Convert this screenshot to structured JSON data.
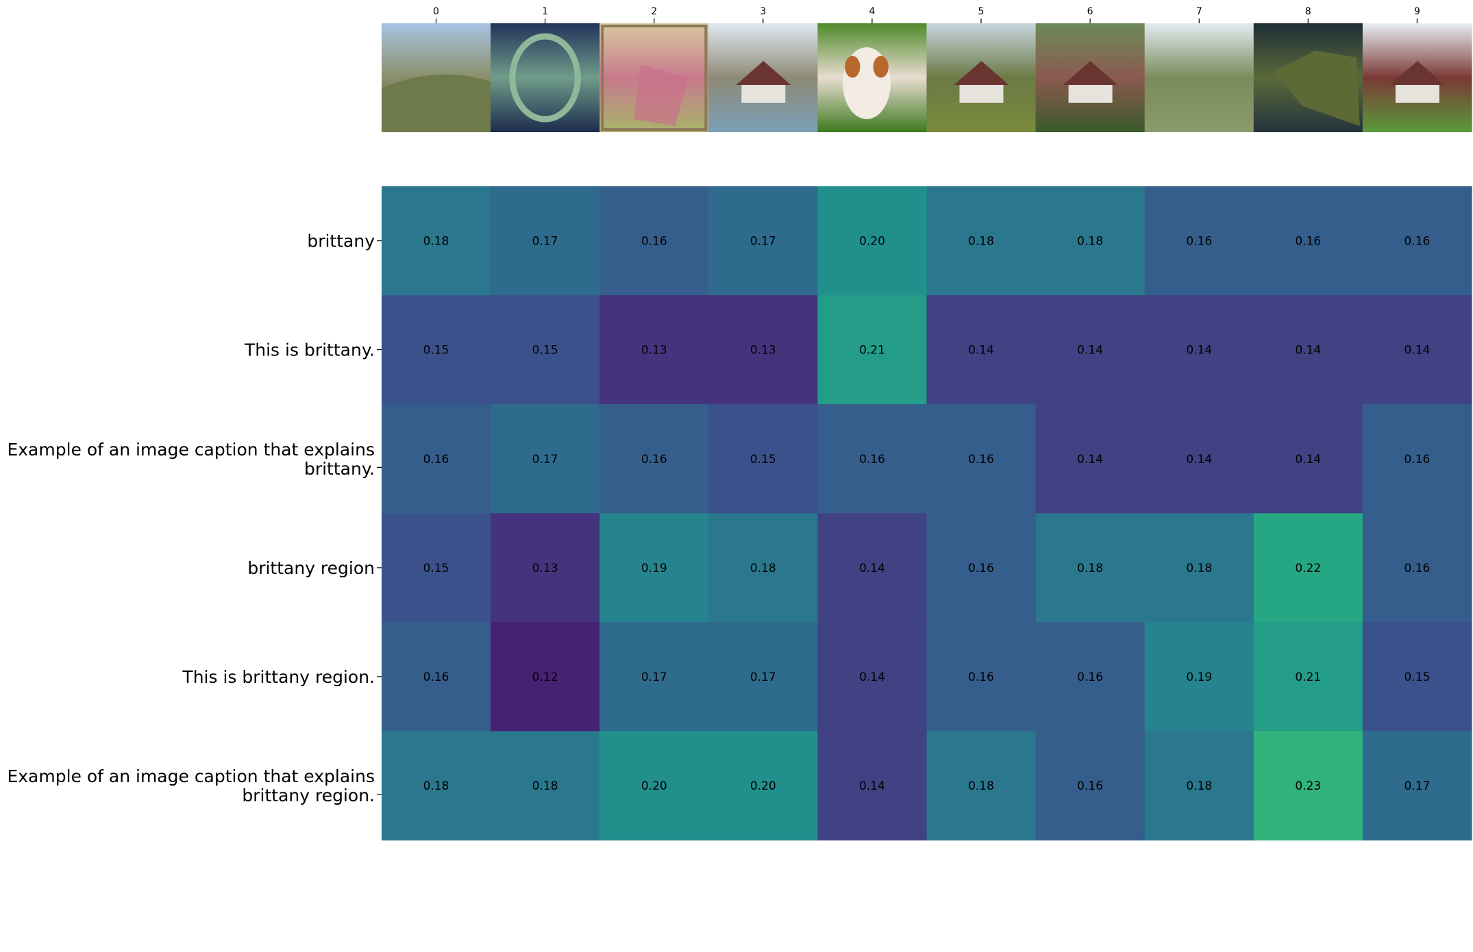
{
  "chart_data": {
    "type": "heatmap",
    "title": "",
    "xlabel": "",
    "ylabel": "",
    "columns": [
      "0",
      "1",
      "2",
      "3",
      "4",
      "5",
      "6",
      "7",
      "8",
      "9"
    ],
    "column_thumbnails": [
      {
        "index": 0,
        "scene": "hill-landscape",
        "sky": "#a9c4e4",
        "mid": "#8a8f6a",
        "ground": "#3f5a2a"
      },
      {
        "index": 1,
        "scene": "atoll-satellite",
        "sky": "#22345a",
        "mid": "#6f9c8a",
        "ground": "#1d2c4e"
      },
      {
        "index": 2,
        "scene": "old-map",
        "sky": "#d8c8a0",
        "mid": "#c87a8e",
        "ground": "#a9b36a"
      },
      {
        "index": 3,
        "scene": "river-village",
        "sky": "#dfe9f2",
        "mid": "#8e8a76",
        "ground": "#7aa0b8"
      },
      {
        "index": 4,
        "scene": "puppy-on-grass",
        "sky": "#4f8a2a",
        "mid": "#e8dcd0",
        "ground": "#3d7a1f"
      },
      {
        "index": 5,
        "scene": "village-meadow",
        "sky": "#c9d6e0",
        "mid": "#6b7a45",
        "ground": "#7a8a3a"
      },
      {
        "index": 6,
        "scene": "house-in-trees",
        "sky": "#6e8a58",
        "mid": "#8a5a50",
        "ground": "#3a5a2a"
      },
      {
        "index": 7,
        "scene": "grassland-trees",
        "sky": "#e4ecf2",
        "mid": "#7a8a5a",
        "ground": "#8a9a6a"
      },
      {
        "index": 8,
        "scene": "peninsula-satellite",
        "sky": "#1e2e36",
        "mid": "#5a6a3a",
        "ground": "#24343c"
      },
      {
        "index": 9,
        "scene": "houses-lawn",
        "sky": "#e8eef2",
        "mid": "#7a3a36",
        "ground": "#5a9a3a"
      }
    ],
    "rows": [
      "brittany",
      "This is brittany.",
      "Example of an image caption that explains\nbrittany.",
      "brittany region",
      "This is brittany region.",
      "Example of an image caption that explains\nbrittany region."
    ],
    "values": [
      [
        0.18,
        0.17,
        0.16,
        0.17,
        0.2,
        0.18,
        0.18,
        0.16,
        0.16,
        0.16
      ],
      [
        0.15,
        0.15,
        0.13,
        0.13,
        0.21,
        0.14,
        0.14,
        0.14,
        0.14,
        0.14
      ],
      [
        0.16,
        0.17,
        0.16,
        0.15,
        0.16,
        0.16,
        0.14,
        0.14,
        0.14,
        0.16
      ],
      [
        0.15,
        0.13,
        0.19,
        0.18,
        0.14,
        0.16,
        0.18,
        0.18,
        0.22,
        0.16
      ],
      [
        0.16,
        0.12,
        0.17,
        0.17,
        0.14,
        0.16,
        0.16,
        0.19,
        0.21,
        0.15
      ],
      [
        0.18,
        0.18,
        0.2,
        0.2,
        0.14,
        0.18,
        0.16,
        0.18,
        0.23,
        0.17
      ]
    ],
    "value_format": "0.00",
    "colormap": "viridis",
    "color_range": [
      0.1,
      0.3
    ],
    "grid": false,
    "legend": "none"
  }
}
